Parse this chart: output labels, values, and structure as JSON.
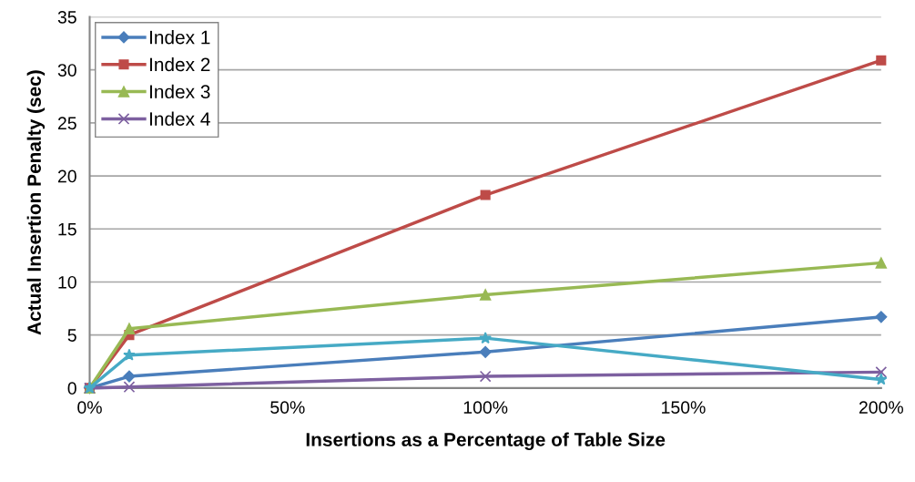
{
  "chart_data": {
    "type": "line",
    "xlabel": "Insertions as a Percentage of Table Size",
    "ylabel": "Actual Insertion Penalty (sec)",
    "x": [
      0,
      10,
      100,
      200
    ],
    "series": [
      {
        "name": "Index 1",
        "color": "#4a7ebb",
        "marker": "diamond",
        "values": [
          0,
          1.1,
          3.4,
          6.7
        ]
      },
      {
        "name": "Index 2",
        "color": "#be4b48",
        "marker": "square",
        "values": [
          0,
          5.0,
          18.2,
          30.9
        ]
      },
      {
        "name": "Index 3",
        "color": "#98b954",
        "marker": "triangle",
        "values": [
          0,
          5.6,
          8.8,
          11.8
        ]
      },
      {
        "name": "Index 4",
        "color": "#7d60a0",
        "marker": "cross",
        "values": [
          0,
          0.1,
          1.1,
          1.5
        ]
      },
      {
        "color": "#46aac5",
        "marker": "star",
        "values": [
          0,
          3.1,
          4.7,
          0.8
        ]
      }
    ],
    "xlim": [
      0,
      200
    ],
    "xticks": [
      {
        "value": 0,
        "label": "0%"
      },
      {
        "value": 50,
        "label": "50%"
      },
      {
        "value": 100,
        "label": "100%"
      },
      {
        "value": 150,
        "label": "150%"
      },
      {
        "value": 200,
        "label": "200%"
      }
    ],
    "ylim": [
      0,
      35
    ],
    "yticks": [
      0,
      5,
      10,
      15,
      20,
      25,
      30,
      35
    ],
    "grid": "y",
    "legend": "top left",
    "line_style": "solid"
  }
}
